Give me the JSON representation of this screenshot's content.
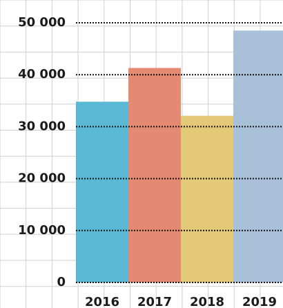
{
  "chart_data": {
    "type": "bar",
    "categories": [
      "2016",
      "2017",
      "2018",
      "2019"
    ],
    "values": [
      34800,
      41300,
      32100,
      48500
    ],
    "colors": [
      "#5bb8d4",
      "#e48a72",
      "#e3c878",
      "#a9c1d8"
    ],
    "ylim": [
      0,
      50000
    ],
    "yticks": [
      0,
      10000,
      20000,
      30000,
      40000,
      50000
    ],
    "ytick_labels": [
      "0",
      "10 000",
      "20 000",
      "30 000",
      "40 000",
      "50 000"
    ],
    "grid": true,
    "title": "",
    "xlabel": "",
    "ylabel": ""
  }
}
